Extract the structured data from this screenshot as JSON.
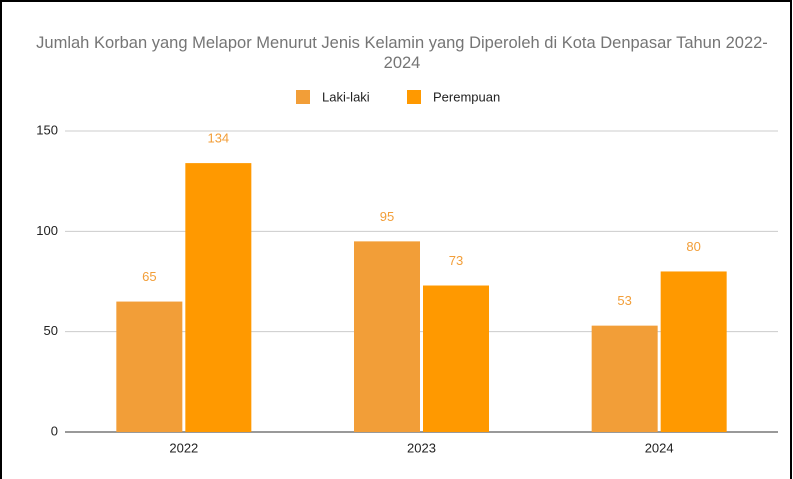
{
  "chart_data": {
    "type": "bar",
    "title": "Jumlah Korban yang Melapor Menurut Jenis Kelamin yang Diperoleh di Kota Denpasar Tahun 2022-2024",
    "categories": [
      "2022",
      "2023",
      "2024"
    ],
    "series": [
      {
        "name": "Laki-laki",
        "color": "#f29e38",
        "values": [
          65,
          95,
          53
        ]
      },
      {
        "name": "Perempuan",
        "color": "#ff9900",
        "values": [
          134,
          73,
          80
        ]
      }
    ],
    "ylim": [
      0,
      150
    ],
    "yticks": [
      0,
      50,
      100,
      150
    ],
    "grid": true,
    "legend": "top"
  }
}
